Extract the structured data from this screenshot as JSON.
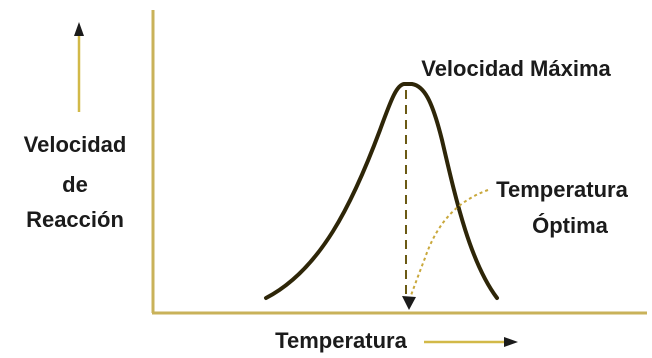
{
  "diagram": {
    "y_axis_label": [
      "Velocidad",
      "de",
      "Reacción"
    ],
    "x_axis_label": "Temperatura",
    "peak_label": "Velocidad Máxima",
    "optimum_label": [
      "Temperatura",
      "Óptima"
    ],
    "colors": {
      "curve": "#2e2608",
      "axis": "#c9b25a",
      "arrow": "#d2b948",
      "dashed": "#6b5a14",
      "text": "#1b1b1b"
    }
  }
}
